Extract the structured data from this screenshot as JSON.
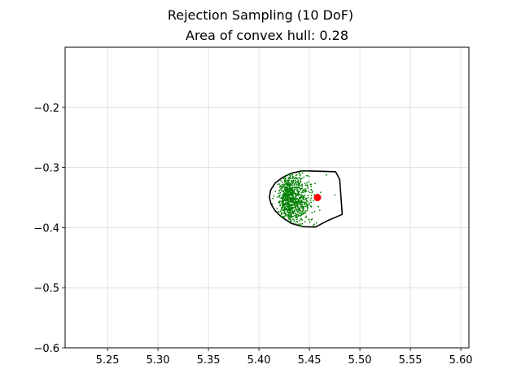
{
  "chart_data": {
    "type": "scatter",
    "title": "Rejection Sampling (10 DoF)",
    "subtitle": "Area of convex hull: 0.28",
    "xlabel": "",
    "ylabel": "",
    "xlim": [
      5.208,
      5.608
    ],
    "ylim": [
      -0.6,
      -0.1
    ],
    "x_ticks": [
      {
        "value": 5.25,
        "label": "5.25"
      },
      {
        "value": 5.3,
        "label": "5.30"
      },
      {
        "value": 5.35,
        "label": "5.35"
      },
      {
        "value": 5.4,
        "label": "5.40"
      },
      {
        "value": 5.45,
        "label": "5.45"
      },
      {
        "value": 5.5,
        "label": "5.50"
      },
      {
        "value": 5.55,
        "label": "5.55"
      },
      {
        "value": 5.6,
        "label": "5.60"
      }
    ],
    "y_ticks": [
      {
        "value": -0.2,
        "label": "−0.2"
      },
      {
        "value": -0.3,
        "label": "−0.3"
      },
      {
        "value": -0.4,
        "label": "−0.4"
      },
      {
        "value": -0.5,
        "label": "−0.5"
      },
      {
        "value": -0.6,
        "label": "−0.6"
      }
    ],
    "grid": true,
    "hull": {
      "color": "#000000",
      "points": [
        [
          5.4104,
          -0.35
        ],
        [
          5.412,
          -0.361
        ],
        [
          5.416,
          -0.372
        ],
        [
          5.422,
          -0.382
        ],
        [
          5.432,
          -0.393
        ],
        [
          5.444,
          -0.3985
        ],
        [
          5.456,
          -0.399
        ],
        [
          5.468,
          -0.3885
        ],
        [
          5.4825,
          -0.378
        ],
        [
          5.48,
          -0.32
        ],
        [
          5.476,
          -0.307
        ],
        [
          5.443,
          -0.3055
        ],
        [
          5.432,
          -0.3095
        ],
        [
          5.423,
          -0.317
        ],
        [
          5.416,
          -0.326
        ],
        [
          5.4115,
          -0.338
        ]
      ]
    },
    "series": [
      {
        "type": "scatter-cloud",
        "color": "#008000",
        "count": 900,
        "center_x": 5.427,
        "center_y": -0.352,
        "spread_x": 0.012,
        "spread_y": 0.023,
        "x_range": [
          5.4104,
          5.479
        ],
        "y_range": [
          -0.3985,
          -0.303
        ]
      },
      {
        "type": "marker",
        "color": "#ff0000",
        "points": [
          [
            5.458,
            -0.35
          ]
        ]
      }
    ]
  }
}
